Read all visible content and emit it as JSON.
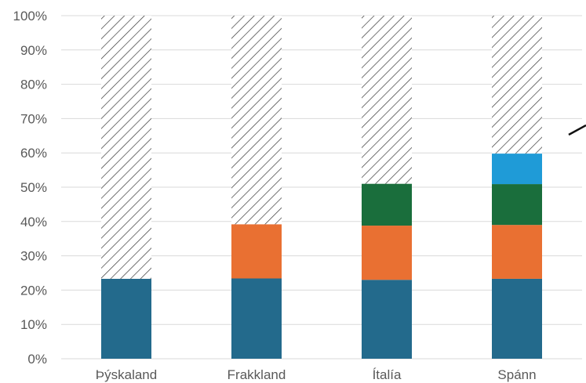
{
  "chart_data": {
    "type": "bar",
    "stacked": true,
    "categories": [
      "Þýskaland",
      "Frakkland",
      "Ítalía",
      "Spánn"
    ],
    "series": [
      {
        "color": "#236a8c",
        "values": [
          23.3,
          23.4,
          23.0,
          23.3
        ]
      },
      {
        "color": "#e97032",
        "values": [
          0,
          15.8,
          15.8,
          15.7
        ]
      },
      {
        "color": "#1a6e3c",
        "values": [
          0,
          0,
          12.2,
          11.9
        ]
      },
      {
        "color": "#1f9bd7",
        "values": [
          0,
          0,
          0,
          8.9
        ]
      }
    ],
    "remainder": {
      "fill": "hatched",
      "to": 100
    },
    "ylim": [
      0,
      100
    ],
    "yticks": [
      "0%",
      "10%",
      "20%",
      "30%",
      "40%",
      "50%",
      "60%",
      "70%",
      "80%",
      "90%",
      "100%"
    ],
    "grid": true,
    "legend": "none",
    "title": "",
    "xlabel": "",
    "ylabel": ""
  }
}
